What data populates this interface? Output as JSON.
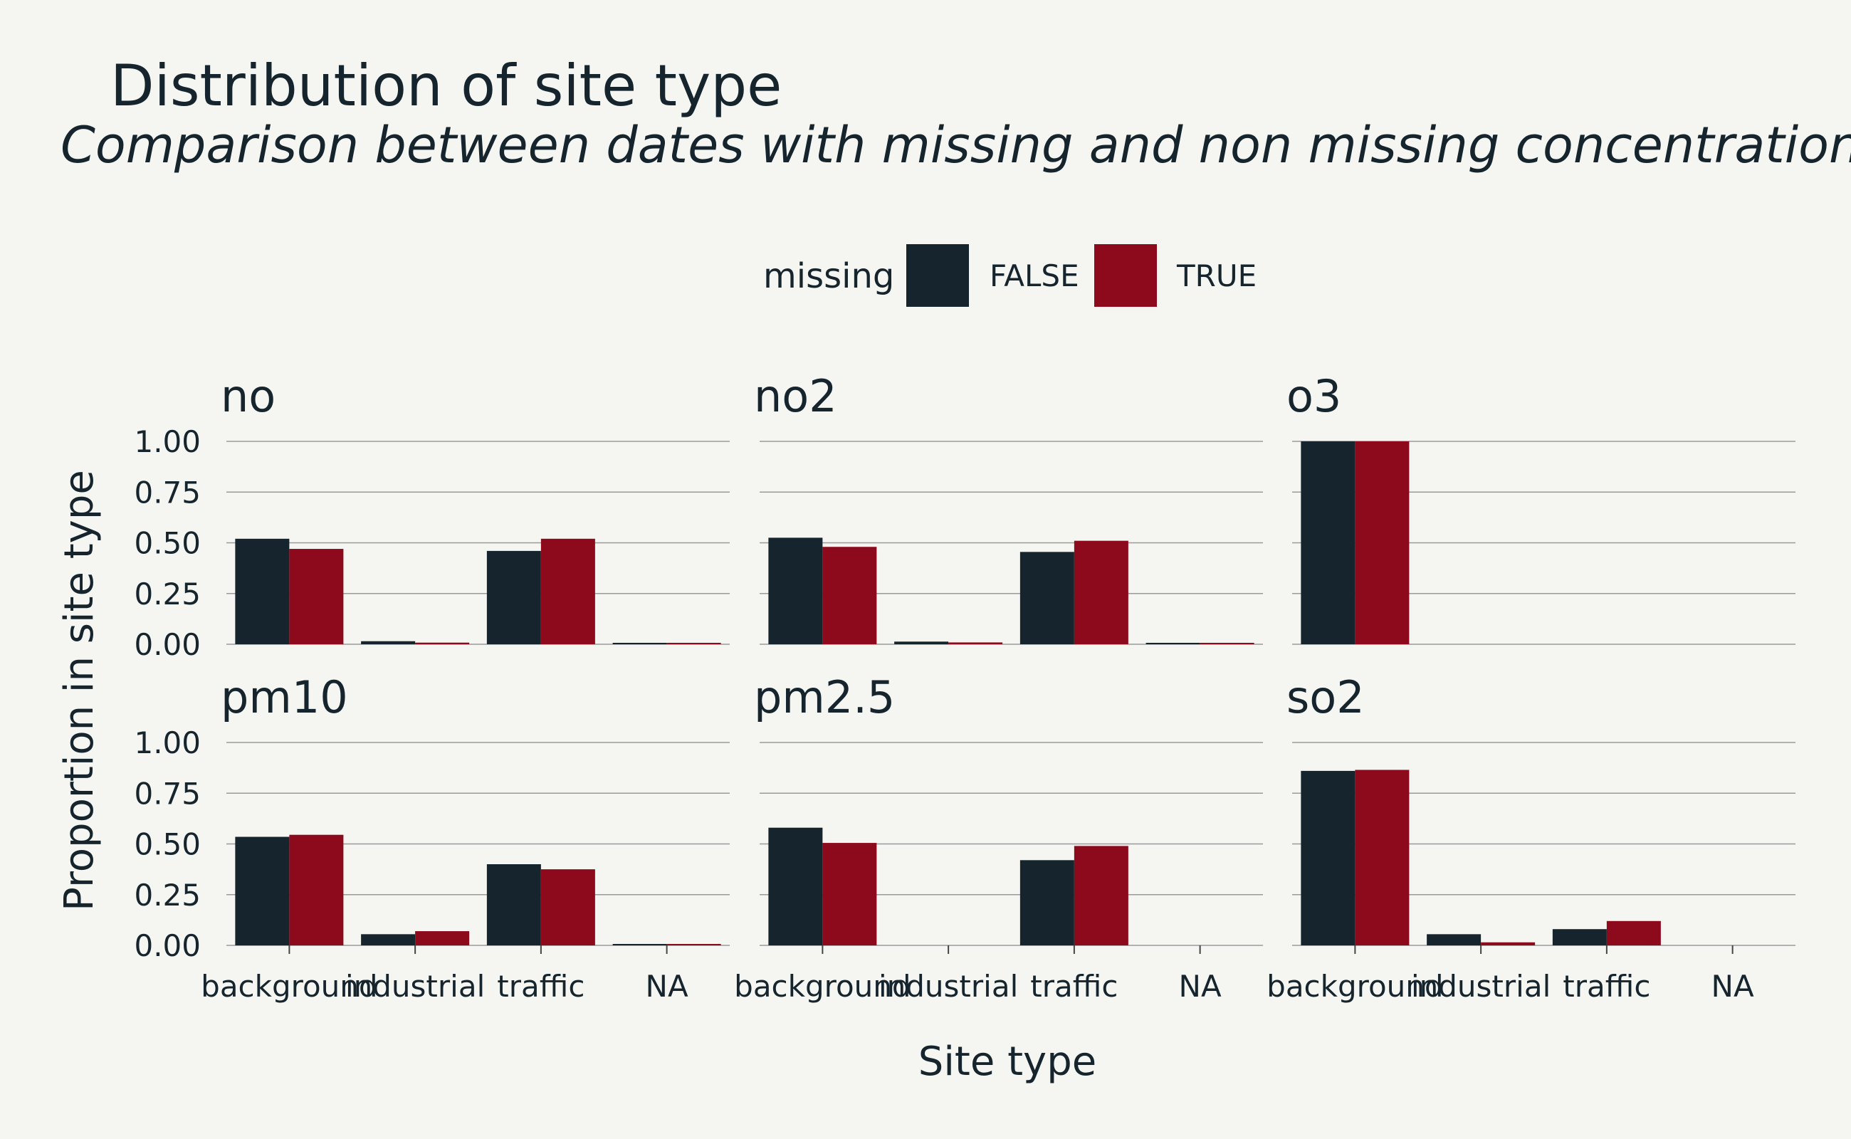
{
  "chart_data": {
    "type": "bar",
    "title": "Distribution of site type",
    "subtitle": "Comparison between dates with missing and non missing concentrations",
    "xlabel": "Site type",
    "ylabel": "Proportion in site type",
    "legend": {
      "title": "missing",
      "position": "top",
      "entries": [
        {
          "label": "FALSE",
          "color": "#16252d"
        },
        {
          "label": "TRUE",
          "color": "#8d0a1d"
        }
      ]
    },
    "categories": [
      "background",
      "industrial",
      "traffic",
      "NA"
    ],
    "yticks": [
      "0.00",
      "0.25",
      "0.50",
      "0.75",
      "1.00"
    ],
    "ylim": [
      0,
      1
    ],
    "grid": true,
    "facets": [
      {
        "name": "no",
        "series": [
          {
            "name": "FALSE",
            "values": [
              0.52,
              0.015,
              0.46,
              0.003
            ]
          },
          {
            "name": "TRUE",
            "values": [
              0.47,
              0.008,
              0.52,
              0.003
            ]
          }
        ]
      },
      {
        "name": "no2",
        "series": [
          {
            "name": "FALSE",
            "values": [
              0.525,
              0.013,
              0.455,
              0.003
            ]
          },
          {
            "name": "TRUE",
            "values": [
              0.48,
              0.009,
              0.51,
              0.003
            ]
          }
        ]
      },
      {
        "name": "o3",
        "series": [
          {
            "name": "FALSE",
            "values": [
              1.0,
              0,
              0,
              0
            ]
          },
          {
            "name": "TRUE",
            "values": [
              1.0,
              0,
              0,
              0
            ]
          }
        ]
      },
      {
        "name": "pm10",
        "series": [
          {
            "name": "FALSE",
            "values": [
              0.535,
              0.055,
              0.4,
              0.005
            ]
          },
          {
            "name": "TRUE",
            "values": [
              0.545,
              0.07,
              0.375,
              0.005
            ]
          }
        ]
      },
      {
        "name": "pm2.5",
        "series": [
          {
            "name": "FALSE",
            "values": [
              0.58,
              0,
              0.42,
              0
            ]
          },
          {
            "name": "TRUE",
            "values": [
              0.505,
              0,
              0.49,
              0
            ]
          }
        ]
      },
      {
        "name": "so2",
        "series": [
          {
            "name": "FALSE",
            "values": [
              0.86,
              0.055,
              0.08,
              0
            ]
          },
          {
            "name": "TRUE",
            "values": [
              0.865,
              0.015,
              0.12,
              0
            ]
          }
        ]
      }
    ]
  }
}
